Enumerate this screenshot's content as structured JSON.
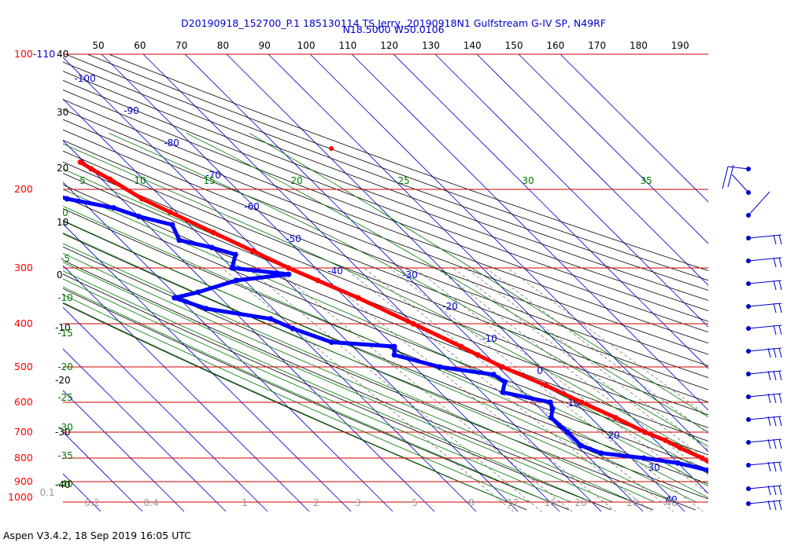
{
  "header": {
    "title_line1": "D20190918_152700_P.1 185130114 TS Jerry, 20190918N1 Gulfstream G-IV SP, N49RF",
    "title_line2": "N18.5000 W50.0106"
  },
  "footer": {
    "text": "Aspen V3.4.2, 18 Sep 2019  16:05 UTC"
  },
  "colors": {
    "temperature": "#ff0000",
    "dewpoint": "#0000ff",
    "isobar": "#cc0000",
    "isotherm": "#0000cc",
    "dry_adiabat": "#000000",
    "moist_adiabat": "#007700",
    "mixing_ratio": "#666666",
    "pressure_label": "#ff0000",
    "height_label": "#000000",
    "wind": "#0000cc"
  },
  "chart_data": {
    "type": "skew-t",
    "pressure_levels": [
      100,
      200,
      300,
      400,
      500,
      600,
      700,
      800,
      900,
      1000
    ],
    "pressure_labels": [
      "100-110",
      "200",
      "300",
      "400",
      "500",
      "600",
      "700",
      "800",
      "900",
      "1000"
    ],
    "top_temperature_ticks": [
      "50",
      "60",
      "70",
      "80",
      "90",
      "100",
      "110",
      "120",
      "130",
      "140",
      "150",
      "160",
      "170",
      "180",
      "190"
    ],
    "left_height_labels": [
      "40",
      "30",
      "20",
      "10",
      "0",
      "-10",
      "-20",
      "-30",
      "-40"
    ],
    "isotherm_labels": [
      "-100",
      "-90",
      "-80",
      "-70",
      "-60",
      "-50",
      "-40",
      "-30",
      "-20",
      "-10",
      "0",
      "10",
      "20",
      "30",
      "40"
    ],
    "isotherm_degC": [
      -100,
      -90,
      -80,
      -70,
      -60,
      -50,
      -40,
      -30,
      -20,
      -10,
      0,
      10,
      20,
      30,
      40
    ],
    "moist_adiabat_labels": [
      "5",
      "10",
      "15",
      "20",
      "25",
      "30",
      "35"
    ],
    "left_moist_labels": [
      "0",
      "-5",
      "-10",
      "-15",
      "-20",
      "-25",
      "-30",
      "-35",
      "-40"
    ],
    "mixing_ratio_labels": [
      "0.1",
      "0.2",
      "0.4",
      "1",
      "2",
      "3",
      "5",
      "8",
      "12",
      "16",
      "20",
      "28",
      "40"
    ],
    "mixing_ratio_values": [
      0.1,
      0.2,
      0.4,
      1,
      2,
      3,
      5,
      8,
      12,
      16,
      20,
      28,
      40
    ],
    "temperature": [
      {
        "p": 1000,
        "t": 27.0
      },
      {
        "p": 980,
        "t": 25.0
      },
      {
        "p": 950,
        "t": 22.8
      },
      {
        "p": 920,
        "t": 21.2
      },
      {
        "p": 900,
        "t": 20.2
      },
      {
        "p": 870,
        "t": 19.6
      },
      {
        "p": 840,
        "t": 18.5
      },
      {
        "p": 800,
        "t": 17.0
      },
      {
        "p": 760,
        "t": 14.2
      },
      {
        "p": 730,
        "t": 12.5
      },
      {
        "p": 700,
        "t": 9.5
      },
      {
        "p": 650,
        "t": 6.0
      },
      {
        "p": 600,
        "t": 1.5
      },
      {
        "p": 550,
        "t": -3.0
      },
      {
        "p": 500,
        "t": -9.0
      },
      {
        "p": 470,
        "t": -12.0
      },
      {
        "p": 450,
        "t": -14.0
      },
      {
        "p": 400,
        "t": -20.0
      },
      {
        "p": 350,
        "t": -27.0
      },
      {
        "p": 320,
        "t": -32.5
      },
      {
        "p": 300,
        "t": -36.5
      },
      {
        "p": 275,
        "t": -41.0
      },
      {
        "p": 250,
        "t": -46.0
      },
      {
        "p": 225,
        "t": -51.5
      },
      {
        "p": 210,
        "t": -55.0
      },
      {
        "p": 190,
        "t": -58.0
      },
      {
        "p": 180,
        "t": -60.0
      },
      {
        "p": 174,
        "t": -61.0
      }
    ],
    "dewpoint": [
      {
        "p": 1000,
        "t": 22.0
      },
      {
        "p": 980,
        "t": 21.5
      },
      {
        "p": 950,
        "t": 20.0
      },
      {
        "p": 920,
        "t": 17.5
      },
      {
        "p": 900,
        "t": 16.5
      },
      {
        "p": 880,
        "t": 16.5
      },
      {
        "p": 850,
        "t": 15.5
      },
      {
        "p": 820,
        "t": 10.0
      },
      {
        "p": 800,
        "t": 3.0
      },
      {
        "p": 780,
        "t": -6.0
      },
      {
        "p": 750,
        "t": -9.0
      },
      {
        "p": 700,
        "t": -9.0
      },
      {
        "p": 650,
        "t": -9.5
      },
      {
        "p": 620,
        "t": -7.0
      },
      {
        "p": 600,
        "t": -6.0
      },
      {
        "p": 570,
        "t": -15.0
      },
      {
        "p": 540,
        "t": -12.0
      },
      {
        "p": 520,
        "t": -13.0
      },
      {
        "p": 500,
        "t": -24.0
      },
      {
        "p": 470,
        "t": -32.0
      },
      {
        "p": 450,
        "t": -30.0
      },
      {
        "p": 440,
        "t": -44.0
      },
      {
        "p": 410,
        "t": -50.0
      },
      {
        "p": 390,
        "t": -53.0
      },
      {
        "p": 370,
        "t": -66.0
      },
      {
        "p": 350,
        "t": -71.0
      },
      {
        "p": 340,
        "t": -64.0
      },
      {
        "p": 320,
        "t": -52.0
      },
      {
        "p": 310,
        "t": -38.0
      },
      {
        "p": 300,
        "t": -50.0
      },
      {
        "p": 280,
        "t": -46.0
      },
      {
        "p": 270,
        "t": -50.0
      },
      {
        "p": 260,
        "t": -56.0
      },
      {
        "p": 240,
        "t": -54.0
      },
      {
        "p": 230,
        "t": -60.0
      },
      {
        "p": 220,
        "t": -64.0
      },
      {
        "p": 210,
        "t": -73.0
      },
      {
        "p": 200,
        "t": -78.0
      }
    ],
    "wind_barb_count": 16
  }
}
